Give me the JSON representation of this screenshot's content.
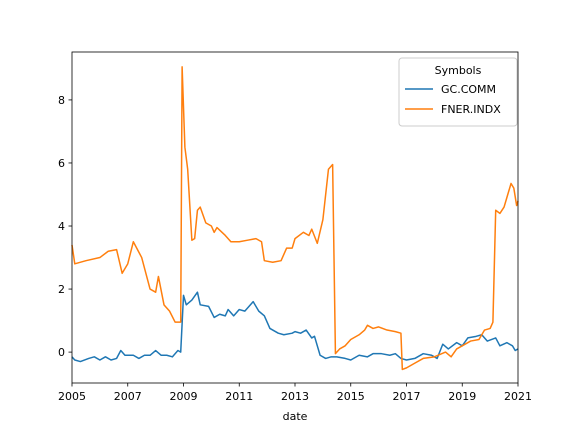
{
  "chart_data": {
    "type": "line",
    "x_label": "date",
    "legend_title": "Symbols",
    "legend_position": "upper right",
    "grid": false,
    "xlim": [
      2005,
      2021
    ],
    "xticks": [
      2005,
      2007,
      2009,
      2011,
      2013,
      2015,
      2017,
      2019,
      2021
    ],
    "ylim": [
      -0.98,
      9.52
    ],
    "yticks": [
      0,
      2,
      4,
      6,
      8
    ],
    "series": [
      {
        "name": "GC.COMM",
        "color": "#1f77b4",
        "x": [
          2005.0,
          2005.1,
          2005.3,
          2005.6,
          2005.8,
          2006.0,
          2006.2,
          2006.4,
          2006.6,
          2006.75,
          2006.9,
          2007.2,
          2007.4,
          2007.6,
          2007.8,
          2008.0,
          2008.2,
          2008.4,
          2008.6,
          2008.8,
          2008.9,
          2009.0,
          2009.1,
          2009.3,
          2009.5,
          2009.6,
          2009.9,
          2010.1,
          2010.3,
          2010.5,
          2010.6,
          2010.8,
          2011.0,
          2011.2,
          2011.5,
          2011.7,
          2011.9,
          2012.1,
          2012.4,
          2012.6,
          2012.9,
          2013.0,
          2013.2,
          2013.4,
          2013.6,
          2013.7,
          2013.9,
          2014.1,
          2014.3,
          2014.5,
          2014.8,
          2015.0,
          2015.3,
          2015.6,
          2015.8,
          2016.1,
          2016.4,
          2016.6,
          2016.8,
          2017.0,
          2017.3,
          2017.6,
          2017.9,
          2018.1,
          2018.3,
          2018.5,
          2018.8,
          2019.0,
          2019.2,
          2019.5,
          2019.7,
          2019.9,
          2020.2,
          2020.35,
          2020.6,
          2020.8,
          2020.9,
          2021.0
        ],
        "values": [
          -0.15,
          -0.25,
          -0.3,
          -0.2,
          -0.15,
          -0.25,
          -0.15,
          -0.25,
          -0.2,
          0.05,
          -0.1,
          -0.1,
          -0.2,
          -0.1,
          -0.1,
          0.05,
          -0.1,
          -0.1,
          -0.15,
          0.05,
          0.0,
          1.8,
          1.5,
          1.65,
          1.9,
          1.5,
          1.45,
          1.1,
          1.2,
          1.15,
          1.35,
          1.15,
          1.35,
          1.3,
          1.6,
          1.3,
          1.15,
          0.75,
          0.6,
          0.55,
          0.6,
          0.65,
          0.6,
          0.7,
          0.45,
          0.5,
          -0.1,
          -0.2,
          -0.15,
          -0.15,
          -0.2,
          -0.25,
          -0.1,
          -0.15,
          -0.05,
          -0.05,
          -0.1,
          -0.05,
          -0.2,
          -0.25,
          -0.2,
          -0.05,
          -0.1,
          -0.2,
          0.25,
          0.1,
          0.3,
          0.2,
          0.45,
          0.5,
          0.55,
          0.35,
          0.45,
          0.2,
          0.3,
          0.2,
          0.05,
          0.1
        ]
      },
      {
        "name": "FNER.INDX",
        "color": "#ff7f0e",
        "x": [
          2005.0,
          2005.1,
          2005.5,
          2006.0,
          2006.3,
          2006.6,
          2006.8,
          2007.0,
          2007.2,
          2007.5,
          2007.8,
          2008.0,
          2008.1,
          2008.3,
          2008.5,
          2008.7,
          2008.9,
          2008.95,
          2009.05,
          2009.15,
          2009.3,
          2009.4,
          2009.5,
          2009.6,
          2009.8,
          2010.0,
          2010.1,
          2010.2,
          2010.5,
          2010.7,
          2011.0,
          2011.3,
          2011.6,
          2011.8,
          2011.9,
          2012.2,
          2012.5,
          2012.7,
          2012.9,
          2013.0,
          2013.3,
          2013.5,
          2013.6,
          2013.8,
          2014.0,
          2014.2,
          2014.35,
          2014.45,
          2014.6,
          2014.8,
          2015.0,
          2015.3,
          2015.5,
          2015.6,
          2015.8,
          2016.0,
          2016.3,
          2016.6,
          2016.8,
          2016.85,
          2017.0,
          2017.3,
          2017.6,
          2018.0,
          2018.4,
          2018.6,
          2018.8,
          2019.0,
          2019.3,
          2019.6,
          2019.8,
          2020.0,
          2020.1,
          2020.2,
          2020.35,
          2020.5,
          2020.6,
          2020.75,
          2020.85,
          2020.95,
          2021.0
        ],
        "values": [
          3.4,
          2.8,
          2.9,
          3.0,
          3.2,
          3.25,
          2.5,
          2.8,
          3.5,
          3.0,
          2.0,
          1.9,
          2.4,
          1.5,
          1.3,
          0.95,
          0.95,
          9.05,
          6.5,
          5.8,
          3.55,
          3.6,
          4.5,
          4.6,
          4.1,
          4.0,
          3.8,
          3.95,
          3.7,
          3.5,
          3.5,
          3.55,
          3.6,
          3.5,
          2.9,
          2.85,
          2.9,
          3.3,
          3.3,
          3.6,
          3.8,
          3.7,
          3.9,
          3.45,
          4.2,
          5.8,
          5.95,
          -0.05,
          0.1,
          0.2,
          0.4,
          0.55,
          0.7,
          0.85,
          0.75,
          0.8,
          0.7,
          0.65,
          0.6,
          -0.55,
          -0.5,
          -0.35,
          -0.2,
          -0.15,
          0.0,
          -0.15,
          0.1,
          0.2,
          0.35,
          0.4,
          0.7,
          0.75,
          0.95,
          4.5,
          4.4,
          4.6,
          4.9,
          5.35,
          5.2,
          4.65,
          4.8
        ]
      }
    ]
  }
}
